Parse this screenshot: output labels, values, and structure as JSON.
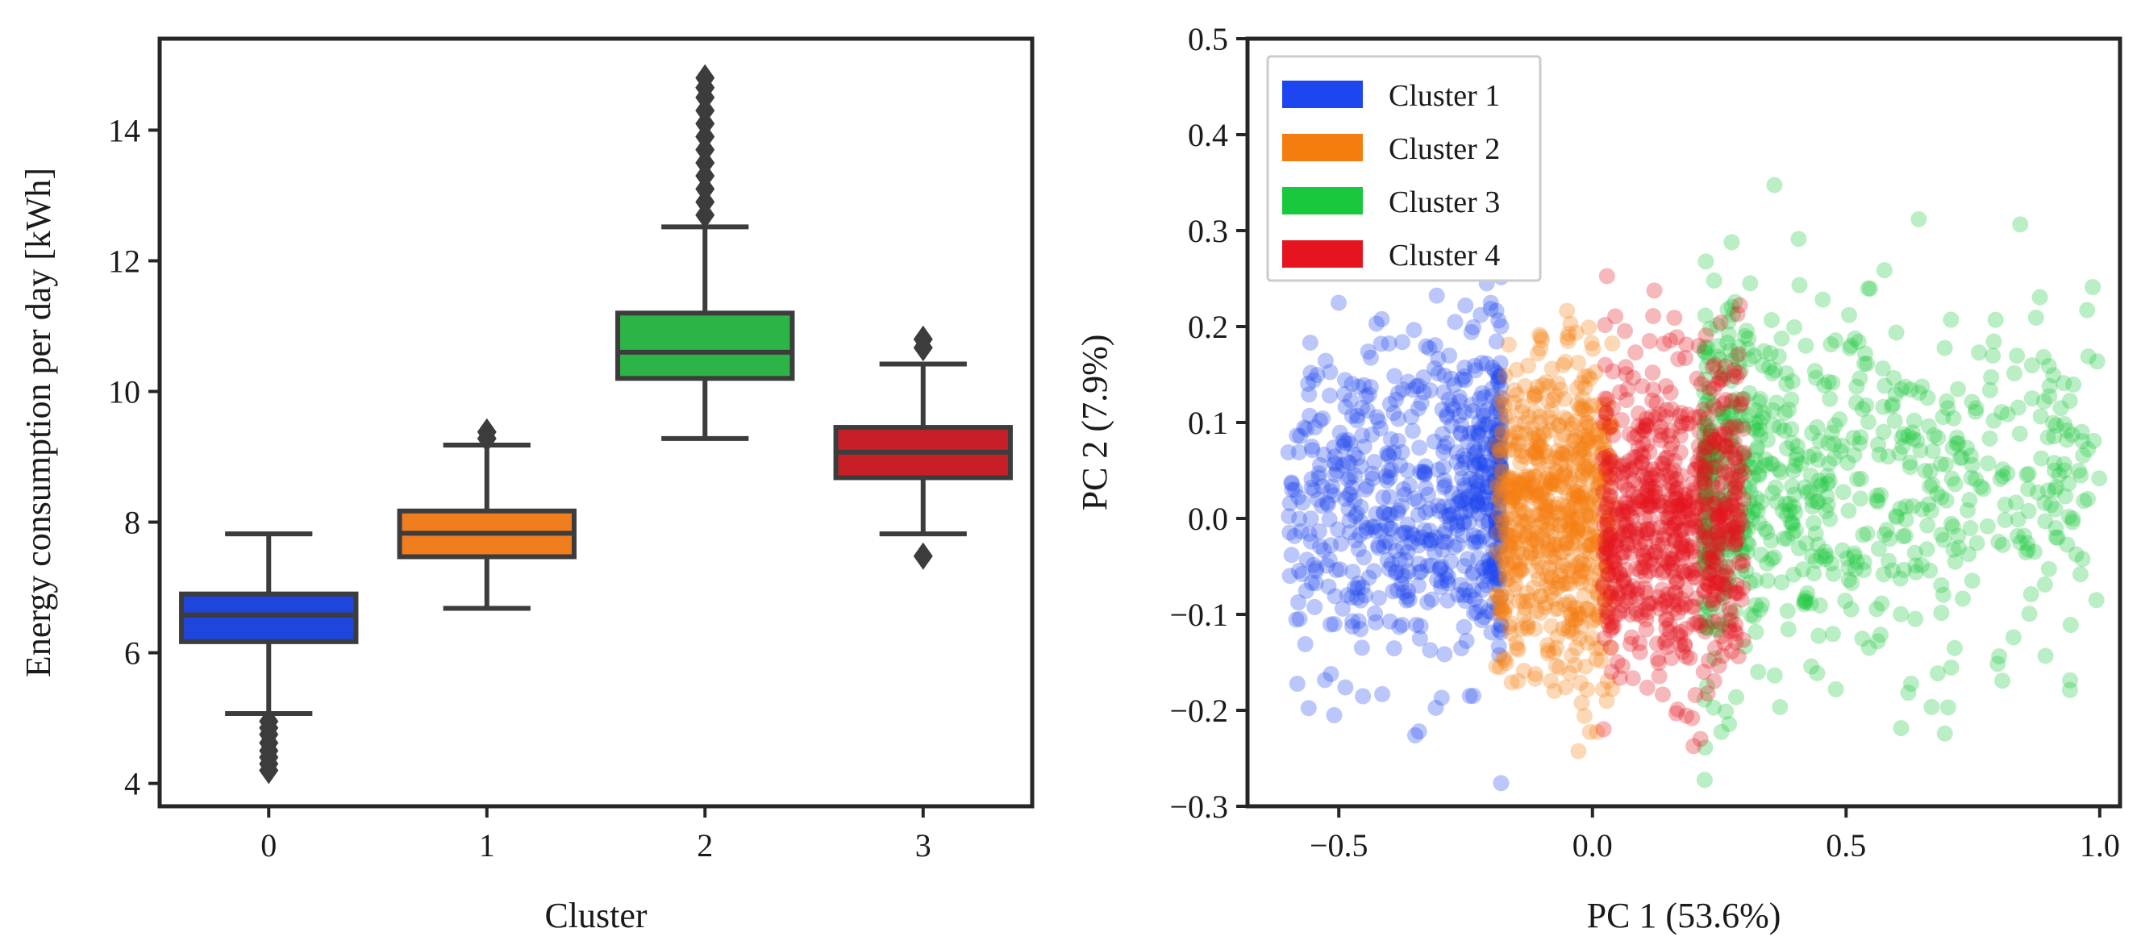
{
  "chart_data": [
    {
      "type": "box",
      "xlabel": "Cluster",
      "ylabel": "Energy consumption per day [kWh]",
      "ylim": [
        3.65,
        15.4
      ],
      "yticks": [
        4,
        6,
        8,
        10,
        12,
        14
      ],
      "categories": [
        "0",
        "1",
        "2",
        "3"
      ],
      "colors": [
        "#1e46dc",
        "#f07d1e",
        "#2db446",
        "#c81e28"
      ],
      "edge_color": "#3c3c3c",
      "boxes": [
        {
          "category": "0",
          "whisker_low": 5.07,
          "q1": 6.17,
          "median": 6.58,
          "q3": 6.9,
          "whisker_high": 7.82,
          "outliers": [
            4.95,
            4.85,
            4.75,
            4.62,
            4.5,
            4.4,
            4.3,
            4.2
          ]
        },
        {
          "category": "1",
          "whisker_low": 6.68,
          "q1": 7.47,
          "median": 7.83,
          "q3": 8.17,
          "whisker_high": 9.18,
          "outliers": [
            9.28,
            9.38
          ]
        },
        {
          "category": "2",
          "whisker_low": 9.28,
          "q1": 10.2,
          "median": 10.6,
          "q3": 11.2,
          "whisker_high": 12.52,
          "outliers": [
            12.7,
            12.9,
            13.1,
            13.3,
            13.5,
            13.7,
            13.9,
            14.1,
            14.3,
            14.5,
            14.65,
            14.8
          ]
        },
        {
          "category": "3",
          "whisker_low": 7.82,
          "q1": 8.68,
          "median": 9.07,
          "q3": 9.45,
          "whisker_high": 10.42,
          "outliers": [
            7.48,
            10.67,
            10.8
          ]
        }
      ]
    },
    {
      "type": "scatter",
      "xlabel": "PC 1 (53.6%)",
      "ylabel": "PC 2 (7.9%)",
      "xlim": [
        -0.68,
        1.04
      ],
      "ylim": [
        -0.3,
        0.5
      ],
      "xticks": [
        -0.5,
        0.0,
        0.5,
        1.0
      ],
      "xtick_labels": [
        "−0.5",
        "0.0",
        "0.5",
        "1.0"
      ],
      "yticks": [
        -0.3,
        -0.2,
        -0.1,
        0.0,
        0.1,
        0.2,
        0.3,
        0.4,
        0.5
      ],
      "ytick_labels": [
        "−0.3",
        "−0.2",
        "−0.1",
        "0.0",
        "0.1",
        "0.2",
        "0.3",
        "0.4",
        "0.5"
      ],
      "legend_position": "top-left",
      "series": [
        {
          "name": "Cluster 1",
          "color": "#1e46f0",
          "x_range": [
            -0.6,
            -0.18
          ],
          "y_center": 0.02,
          "y_spread": 0.085,
          "n": 650
        },
        {
          "name": "Cluster 2",
          "color": "#f57d0f",
          "x_range": [
            -0.19,
            0.04
          ],
          "y_center": 0.0,
          "y_spread": 0.085,
          "n": 650
        },
        {
          "name": "Cluster 3",
          "color": "#19c83c",
          "x_range": [
            0.22,
            1.0
          ],
          "y_center": 0.03,
          "y_spread": 0.095,
          "n": 700
        },
        {
          "name": "Cluster 4",
          "color": "#e6141e",
          "x_range": [
            0.02,
            0.3
          ],
          "y_center": 0.0,
          "y_spread": 0.085,
          "n": 700
        }
      ]
    }
  ]
}
